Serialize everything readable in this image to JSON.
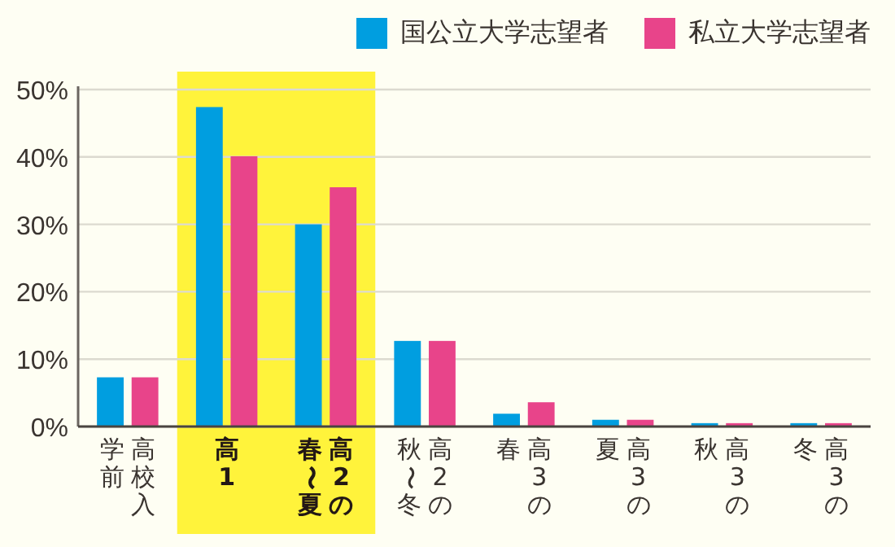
{
  "chart_data": {
    "type": "bar",
    "categories": [
      "高校入学前",
      "高1",
      "高2の春〜夏",
      "高2の秋〜冬",
      "高3の春",
      "高3の夏",
      "高3の秋",
      "高3の冬"
    ],
    "series": [
      {
        "name": "国公立大学志望者",
        "color": "#009ee0",
        "values": [
          7.3,
          47.4,
          30.0,
          12.7,
          1.9,
          1.0,
          0.5,
          0.5
        ]
      },
      {
        "name": "私立大学志望者",
        "color": "#e8448a",
        "values": [
          7.3,
          40.1,
          35.5,
          12.7,
          3.6,
          1.0,
          0.5,
          0.5
        ]
      }
    ],
    "ylim": [
      0,
      50
    ],
    "yticks": [
      {
        "value": 0,
        "label": "0%"
      },
      {
        "value": 10,
        "label": "10%"
      },
      {
        "value": 20,
        "label": "20%"
      },
      {
        "value": 30,
        "label": "30%"
      },
      {
        "value": 40,
        "label": "40%"
      },
      {
        "value": 50,
        "label": "50%"
      }
    ],
    "bands": [
      {
        "axis": "x",
        "from": "高1",
        "to": "高2の春〜夏",
        "color": "#fff33b"
      }
    ],
    "grid": "y",
    "legend": "top right"
  }
}
